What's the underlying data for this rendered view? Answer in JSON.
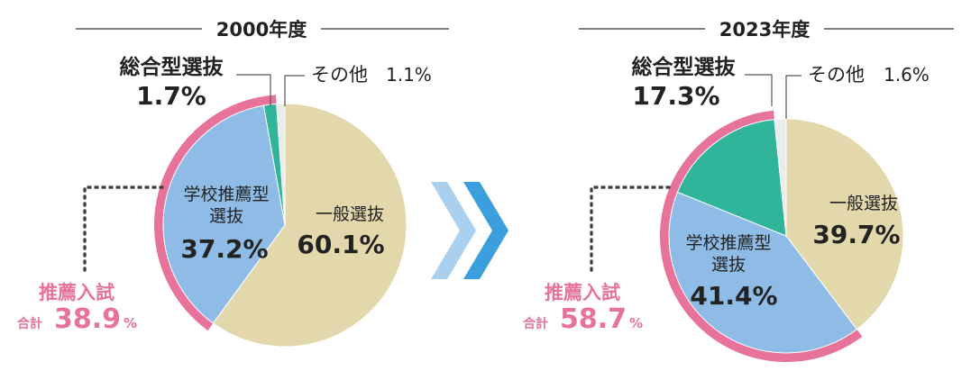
{
  "chart_data": [
    {
      "type": "pie",
      "title": "2000年度",
      "slices": [
        {
          "name": "一般選抜",
          "value": 60.1,
          "label": "60.1%",
          "color": "#e3d8ac"
        },
        {
          "name": "学校推薦型選抜",
          "value": 37.2,
          "label": "37.2%",
          "color": "#8ebce6"
        },
        {
          "name": "総合型選抜",
          "value": 1.7,
          "label": "1.7%",
          "color": "#30b59b"
        },
        {
          "name": "その他",
          "value": 1.1,
          "label": "1.1%",
          "color": "#e9ece9"
        }
      ],
      "recommendation_total": {
        "label": "推薦入試",
        "prefix": "合計",
        "value": 38.9,
        "display": "38.9%"
      }
    },
    {
      "type": "pie",
      "title": "2023年度",
      "slices": [
        {
          "name": "一般選抜",
          "value": 39.7,
          "label": "39.7%",
          "color": "#e3d8ac"
        },
        {
          "name": "学校推薦型選抜",
          "value": 41.4,
          "label": "41.4%",
          "color": "#8ebce6"
        },
        {
          "name": "総合型選抜",
          "value": 17.3,
          "label": "17.3%",
          "color": "#30b59b"
        },
        {
          "name": "その他",
          "value": 1.6,
          "label": "1.6%",
          "color": "#e9ece9"
        }
      ],
      "recommendation_total": {
        "label": "推薦入試",
        "prefix": "合計",
        "value": 58.7,
        "display": "58.7%"
      }
    }
  ],
  "labels": {
    "general": "一般選抜",
    "school_line1": "学校推薦型",
    "school_line2": "選抜",
    "comprehensive": "総合型選抜",
    "other": "その他",
    "rec": "推薦入試",
    "total_prefix": "合計",
    "total_2000_num": "38.9",
    "total_2023_num": "58.7",
    "percent": "%"
  },
  "colors": {
    "pink": "#e8739a",
    "arrow_light": "#a9d0ee",
    "arrow_dark": "#3a9fdc"
  }
}
